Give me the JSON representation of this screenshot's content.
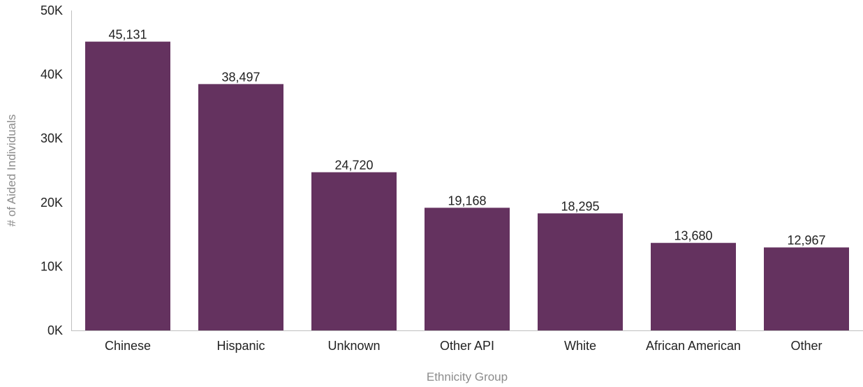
{
  "chart_data": {
    "type": "bar",
    "title": "",
    "xlabel": "Ethnicity Group",
    "ylabel": "# of Aided Individuals",
    "categories": [
      "Chinese",
      "Hispanic",
      "Unknown",
      "Other API",
      "White",
      "African American",
      "Other"
    ],
    "values": [
      45131,
      38497,
      24720,
      19168,
      18295,
      13680,
      12967
    ],
    "value_labels": [
      "45,131",
      "38,497",
      "24,720",
      "19,168",
      "18,295",
      "13,680",
      "12,967"
    ],
    "ylim": [
      0,
      50000
    ],
    "yticks": [
      0,
      10000,
      20000,
      30000,
      40000,
      50000
    ],
    "ytick_labels": [
      "0K",
      "10K",
      "20K",
      "30K",
      "40K",
      "50K"
    ],
    "grid": false,
    "legend": "none",
    "bar_color": "#64325f",
    "axis_color": "#bfbfbf"
  }
}
